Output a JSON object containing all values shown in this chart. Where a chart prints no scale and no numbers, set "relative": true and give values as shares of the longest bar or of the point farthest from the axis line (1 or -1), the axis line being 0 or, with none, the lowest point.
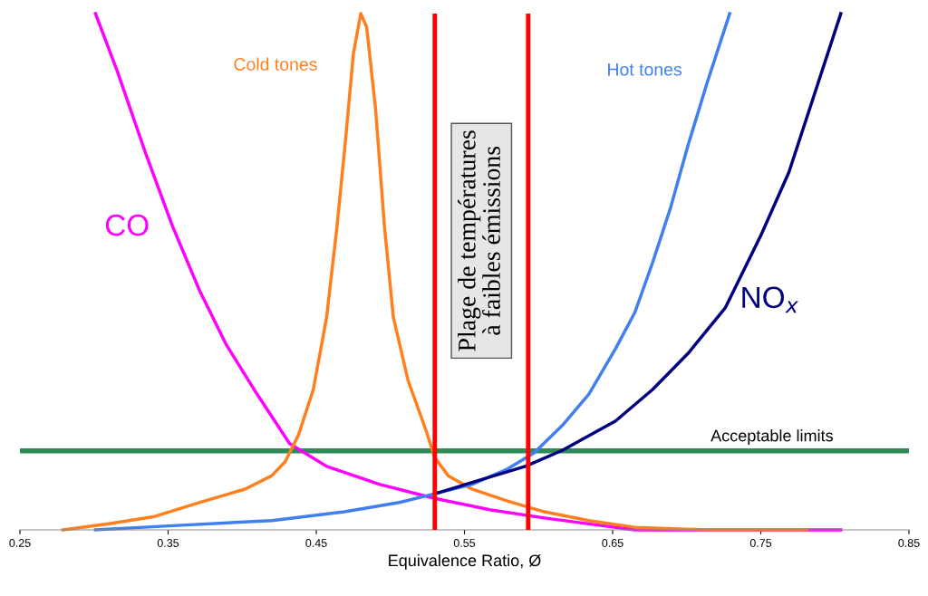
{
  "chart_data": {
    "type": "line",
    "relative": true,
    "xlabel": "Equivalence Ratio, Ø",
    "xlim": [
      0.25,
      0.85
    ],
    "xticks": [
      0.25,
      0.35,
      0.45,
      0.55,
      0.65,
      0.75,
      0.85
    ],
    "grid": false,
    "legend": false,
    "marker": "none",
    "line_style": "solid",
    "series": [
      {
        "name": "CO",
        "color": "#ff00ff",
        "x": [
          0.301,
          0.316,
          0.335,
          0.353,
          0.371,
          0.389,
          0.408,
          0.432,
          0.457,
          0.493,
          0.53,
          0.567,
          0.604,
          0.641,
          0.665,
          0.726,
          0.804
        ],
        "values": [
          1.0,
          0.886,
          0.728,
          0.588,
          0.465,
          0.36,
          0.272,
          0.167,
          0.123,
          0.088,
          0.061,
          0.039,
          0.023,
          0.009,
          0,
          0,
          0
        ]
      },
      {
        "name": "Cold tones",
        "color": "#ff7f1e",
        "x": [
          0.279,
          0.31,
          0.341,
          0.371,
          0.402,
          0.42,
          0.429,
          0.438,
          0.448,
          0.457,
          0.464,
          0.47,
          0.475,
          0.48,
          0.484,
          0.49,
          0.496,
          0.502,
          0.512,
          0.524,
          0.53,
          0.539,
          0.555,
          0.579,
          0.604,
          0.634,
          0.665,
          0.714,
          0.781
        ],
        "values": [
          0,
          0.012,
          0.026,
          0.053,
          0.079,
          0.105,
          0.132,
          0.184,
          0.272,
          0.412,
          0.588,
          0.763,
          0.921,
          1.0,
          0.974,
          0.816,
          0.588,
          0.412,
          0.289,
          0.193,
          0.14,
          0.105,
          0.079,
          0.056,
          0.035,
          0.018,
          0.005,
          0,
          0
        ]
      },
      {
        "name": "Hot tones",
        "color": "#3f7fef",
        "x": [
          0.301,
          0.359,
          0.42,
          0.469,
          0.506,
          0.53,
          0.555,
          0.579,
          0.597,
          0.616,
          0.634,
          0.652,
          0.665,
          0.677,
          0.689,
          0.701,
          0.714,
          0.729
        ],
        "values": [
          0,
          0.009,
          0.018,
          0.035,
          0.053,
          0.07,
          0.088,
          0.118,
          0.149,
          0.202,
          0.263,
          0.351,
          0.421,
          0.518,
          0.623,
          0.746,
          0.868,
          1.0
        ]
      },
      {
        "name": "NO$_{x}$",
        "color": "#000080",
        "x": [
          0.53,
          0.591,
          0.616,
          0.652,
          0.677,
          0.701,
          0.726,
          0.75,
          0.769,
          0.787,
          0.804
        ],
        "values": [
          0.07,
          0.123,
          0.154,
          0.211,
          0.272,
          0.342,
          0.43,
          0.57,
          0.693,
          0.851,
          1.0
        ]
      }
    ],
    "ref_lines": [
      {
        "axis": "y",
        "value": 0.153,
        "label": "Acceptable limits",
        "color": "#2e8b57"
      },
      {
        "axis": "x",
        "value": 0.53,
        "color": "#ff0000"
      },
      {
        "axis": "x",
        "value": 0.593,
        "color": "#ff0000"
      }
    ],
    "annotations": [
      "Plage de températures\nà faibles émissions"
    ]
  }
}
